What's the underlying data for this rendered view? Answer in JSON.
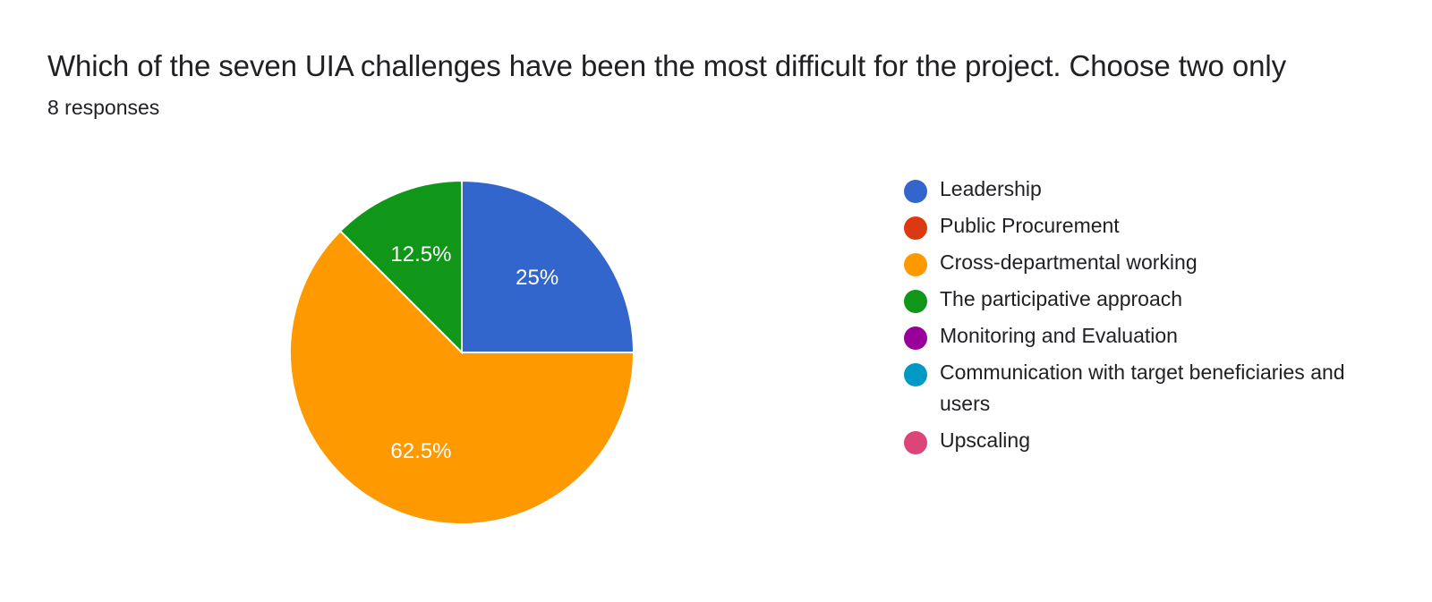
{
  "question": {
    "title": "Which of the seven UIA challenges have been the most difficult for the project. Choose two only",
    "responses": "8 responses"
  },
  "chart_data": {
    "type": "pie",
    "title": "Which of the seven UIA challenges have been the most difficult for the project. Choose two only",
    "legend_position": "right",
    "slices": [
      {
        "label": "Leadership",
        "value": 25,
        "display": "25%",
        "color": "#3366cc"
      },
      {
        "label": "Public Procurement",
        "value": 0,
        "display": "",
        "color": "#dc3912"
      },
      {
        "label": "Cross-departmental working",
        "value": 62.5,
        "display": "62.5%",
        "color": "#ff9900"
      },
      {
        "label": "The participative approach",
        "value": 12.5,
        "display": "12.5%",
        "color": "#109618"
      },
      {
        "label": "Monitoring and Evaluation",
        "value": 0,
        "display": "",
        "color": "#990099"
      },
      {
        "label": "Communication with target beneficiaries and users",
        "value": 0,
        "display": "",
        "color": "#0099c6"
      },
      {
        "label": "Upscaling",
        "value": 0,
        "display": "",
        "color": "#dd4477"
      }
    ]
  }
}
